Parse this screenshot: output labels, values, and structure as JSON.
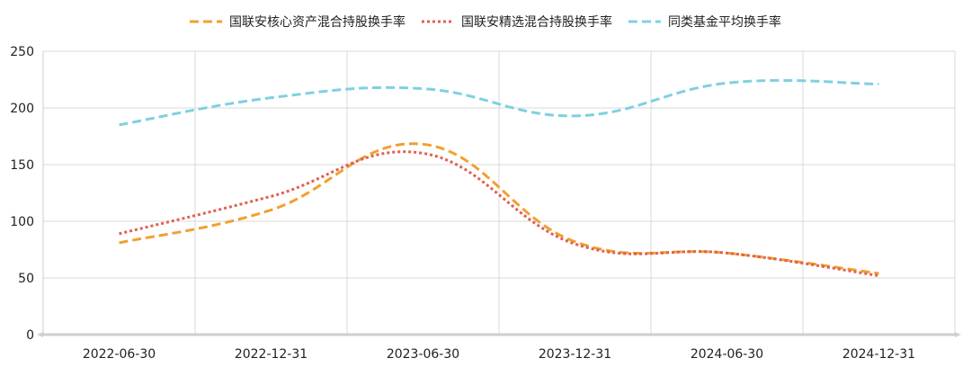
{
  "chart_data": {
    "type": "line",
    "categories": [
      "2022-06-30",
      "2022-12-31",
      "2023-06-30",
      "2023-12-31",
      "2024-06-30",
      "2024-12-31"
    ],
    "ylim": [
      0,
      250
    ],
    "yticks": [
      0,
      50,
      100,
      150,
      200,
      250
    ],
    "grid": true,
    "legend_position": "top",
    "series": [
      {
        "name": "国联安核心资产混合持股换手率",
        "values": [
          81,
          110,
          168,
          82,
          72,
          54
        ],
        "color": "#F0A030",
        "dash": "dashed"
      },
      {
        "name": "国联安精选混合持股换手率",
        "values": [
          89,
          122,
          160,
          80,
          72,
          52
        ],
        "color": "#E06050",
        "dash": "dotted"
      },
      {
        "name": "同类基金平均换手率",
        "values": [
          185,
          209,
          217,
          193,
          222,
          221
        ],
        "color": "#80D0E0",
        "dash": "dashed"
      }
    ]
  }
}
